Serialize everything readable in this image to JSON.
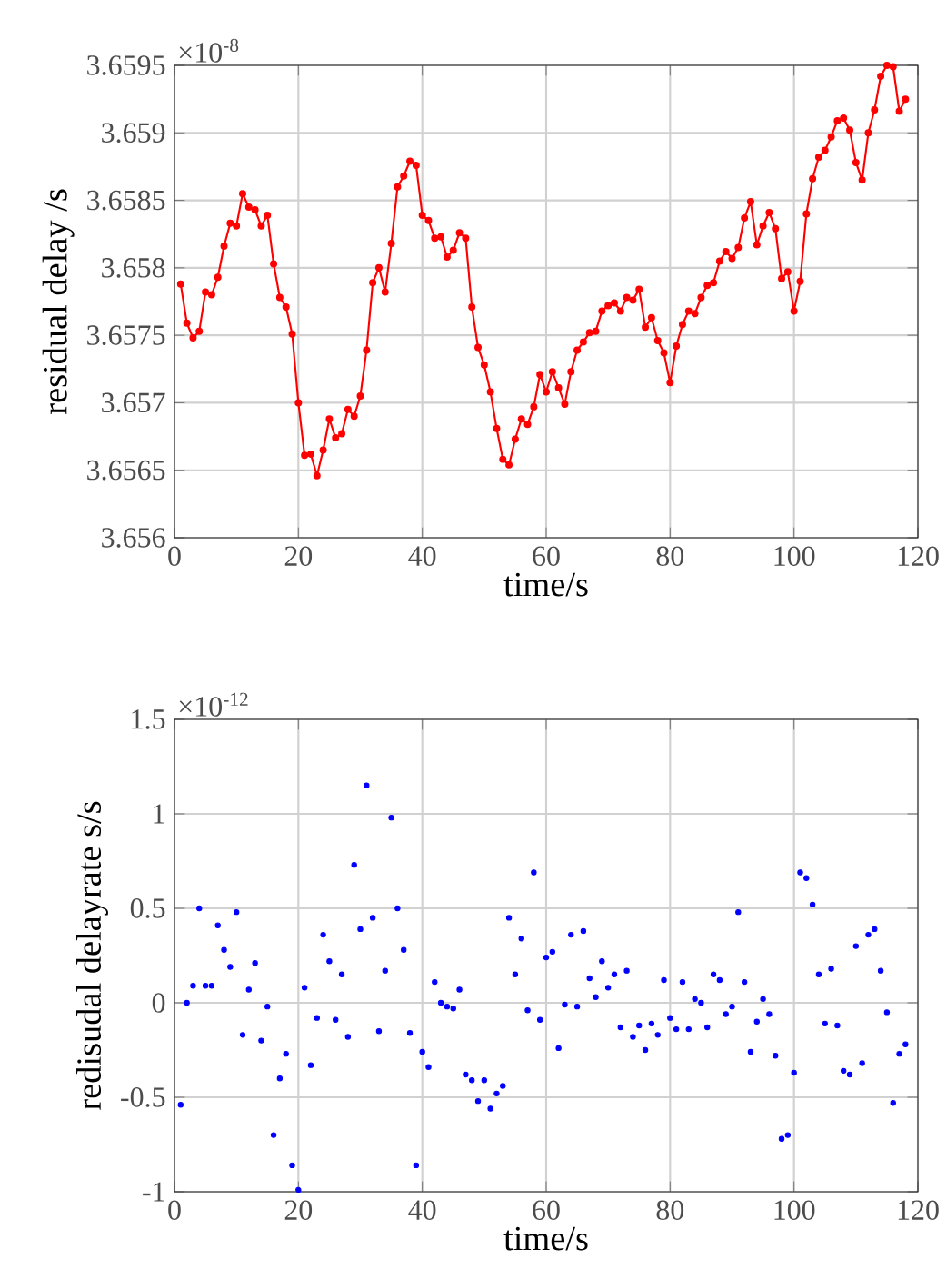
{
  "chart_data": [
    {
      "type": "line",
      "xlabel": "time/s",
      "ylabel": "residual delay /s",
      "annotations": [
        "×10$^{-8}$"
      ],
      "color": "#ff0000",
      "marker": "circle",
      "grid": true,
      "xlim": [
        0,
        120
      ],
      "xticks": [
        0,
        20,
        40,
        60,
        80,
        100,
        120
      ],
      "ylim": [
        3.656,
        3.6595
      ],
      "yticks": [
        3.656,
        3.6565,
        3.657,
        3.6575,
        3.658,
        3.6585,
        3.659,
        3.6595
      ],
      "x": [
        1,
        2,
        3,
        4,
        5,
        6,
        7,
        8,
        9,
        10,
        11,
        12,
        13,
        14,
        15,
        16,
        17,
        18,
        19,
        20,
        21,
        22,
        23,
        24,
        25,
        26,
        27,
        28,
        29,
        30,
        31,
        32,
        33,
        34,
        35,
        36,
        37,
        38,
        39,
        40,
        41,
        42,
        43,
        44,
        45,
        46,
        47,
        48,
        49,
        50,
        51,
        52,
        53,
        54,
        55,
        56,
        57,
        58,
        59,
        60,
        61,
        62,
        63,
        64,
        65,
        66,
        67,
        68,
        69,
        70,
        71,
        72,
        73,
        74,
        75,
        76,
        77,
        78,
        79,
        80,
        81,
        82,
        83,
        84,
        85,
        86,
        87,
        88,
        89,
        90,
        91,
        92,
        93,
        94,
        95,
        96,
        97,
        98,
        99,
        100,
        101,
        102,
        103,
        104,
        105,
        106,
        107,
        108,
        109,
        110,
        111,
        112,
        113,
        114,
        115,
        116,
        117,
        118
      ],
      "values": [
        3.65788,
        3.65759,
        3.65748,
        3.65753,
        3.65782,
        3.6578,
        3.65793,
        3.65816,
        3.65833,
        3.65831,
        3.65855,
        3.65845,
        3.65843,
        3.65831,
        3.65839,
        3.65803,
        3.65778,
        3.65771,
        3.65751,
        3.657,
        3.65661,
        3.65662,
        3.65646,
        3.65665,
        3.65688,
        3.65674,
        3.65677,
        3.65695,
        3.6569,
        3.65705,
        3.65739,
        3.65789,
        3.658,
        3.65782,
        3.65818,
        3.6586,
        3.65868,
        3.65879,
        3.65876,
        3.65839,
        3.65835,
        3.65822,
        3.65823,
        3.65808,
        3.65813,
        3.65826,
        3.65822,
        3.65771,
        3.65741,
        3.65728,
        3.65708,
        3.65681,
        3.65658,
        3.65654,
        3.65673,
        3.65688,
        3.65684,
        3.65697,
        3.65721,
        3.65708,
        3.65723,
        3.65711,
        3.65699,
        3.65723,
        3.65739,
        3.65745,
        3.65752,
        3.65753,
        3.65768,
        3.65772,
        3.65774,
        3.65768,
        3.65778,
        3.65776,
        3.65784,
        3.65756,
        3.65763,
        3.65746,
        3.65737,
        3.65715,
        3.65742,
        3.65758,
        3.65768,
        3.65766,
        3.65778,
        3.65787,
        3.65789,
        3.65805,
        3.65812,
        3.65807,
        3.65815,
        3.65837,
        3.65849,
        3.65817,
        3.65831,
        3.65841,
        3.65829,
        3.65792,
        3.65797,
        3.65768,
        3.6579,
        3.6584,
        3.65866,
        3.65882,
        3.65887,
        3.65897,
        3.65909,
        3.65911,
        3.65902,
        3.65878,
        3.65865,
        3.659,
        3.65917,
        3.65942,
        3.6595,
        3.65949,
        3.65916,
        3.65925
      ]
    },
    {
      "type": "scatter",
      "xlabel": "time/s",
      "ylabel": "redisudal delayrate s/s",
      "annotations": [
        "×10$^{-12}$"
      ],
      "color": "#0000ff",
      "marker": "circle",
      "grid": true,
      "xlim": [
        0,
        120
      ],
      "xticks": [
        0,
        20,
        40,
        60,
        80,
        100,
        120
      ],
      "ylim": [
        -1,
        1.5
      ],
      "yticks": [
        -1,
        -0.5,
        0,
        0.5,
        1,
        1.5
      ],
      "x": [
        1,
        2,
        3,
        4,
        5,
        6,
        7,
        8,
        9,
        10,
        11,
        12,
        13,
        14,
        15,
        16,
        17,
        18,
        19,
        20,
        21,
        22,
        23,
        24,
        25,
        26,
        27,
        28,
        29,
        30,
        31,
        32,
        33,
        34,
        35,
        36,
        37,
        38,
        39,
        40,
        41,
        42,
        43,
        44,
        45,
        46,
        47,
        48,
        49,
        50,
        51,
        52,
        53,
        54,
        55,
        56,
        57,
        58,
        59,
        60,
        61,
        62,
        63,
        64,
        65,
        66,
        67,
        68,
        69,
        70,
        71,
        72,
        73,
        74,
        75,
        76,
        77,
        78,
        79,
        80,
        81,
        82,
        83,
        84,
        85,
        86,
        87,
        88,
        89,
        90,
        91,
        92,
        93,
        94,
        95,
        96,
        97,
        98,
        99,
        100,
        101,
        102,
        103,
        104,
        105,
        106,
        107,
        108,
        109,
        110,
        111,
        112,
        113,
        114,
        115,
        116,
        117,
        118
      ],
      "values": [
        -0.54,
        0.0,
        0.09,
        0.5,
        0.09,
        0.09,
        0.41,
        0.28,
        0.19,
        0.48,
        -0.17,
        0.07,
        0.21,
        -0.2,
        -0.02,
        -0.7,
        -0.4,
        -0.27,
        -0.86,
        -0.99,
        0.08,
        -0.33,
        -0.08,
        0.36,
        0.22,
        -0.09,
        0.15,
        -0.18,
        0.73,
        0.39,
        1.15,
        0.45,
        -0.15,
        0.17,
        0.98,
        0.5,
        0.28,
        -0.16,
        -0.86,
        -0.26,
        -0.34,
        0.11,
        0.0,
        -0.02,
        -0.03,
        0.07,
        -0.38,
        -0.41,
        -0.52,
        -0.41,
        -0.56,
        -0.48,
        -0.44,
        0.45,
        0.15,
        0.34,
        -0.04,
        0.69,
        -0.09,
        0.24,
        0.27,
        -0.24,
        -0.01,
        0.36,
        -0.02,
        0.38,
        0.13,
        0.03,
        0.22,
        0.08,
        0.15,
        -0.13,
        0.17,
        -0.18,
        -0.12,
        -0.25,
        -0.11,
        -0.17,
        0.12,
        -0.08,
        -0.14,
        0.11,
        -0.14,
        0.02,
        0.0,
        -0.13,
        0.15,
        0.12,
        -0.06,
        -0.02,
        0.48,
        0.11,
        -0.26,
        -0.1,
        0.02,
        -0.06,
        -0.28,
        -0.72,
        -0.7,
        -0.37,
        0.69,
        0.66,
        0.52,
        0.15,
        -0.11,
        0.18,
        -0.12,
        -0.36,
        -0.38,
        0.3,
        -0.32,
        0.36,
        0.39,
        0.17,
        -0.05,
        -0.53,
        -0.27,
        -0.22
      ]
    }
  ]
}
